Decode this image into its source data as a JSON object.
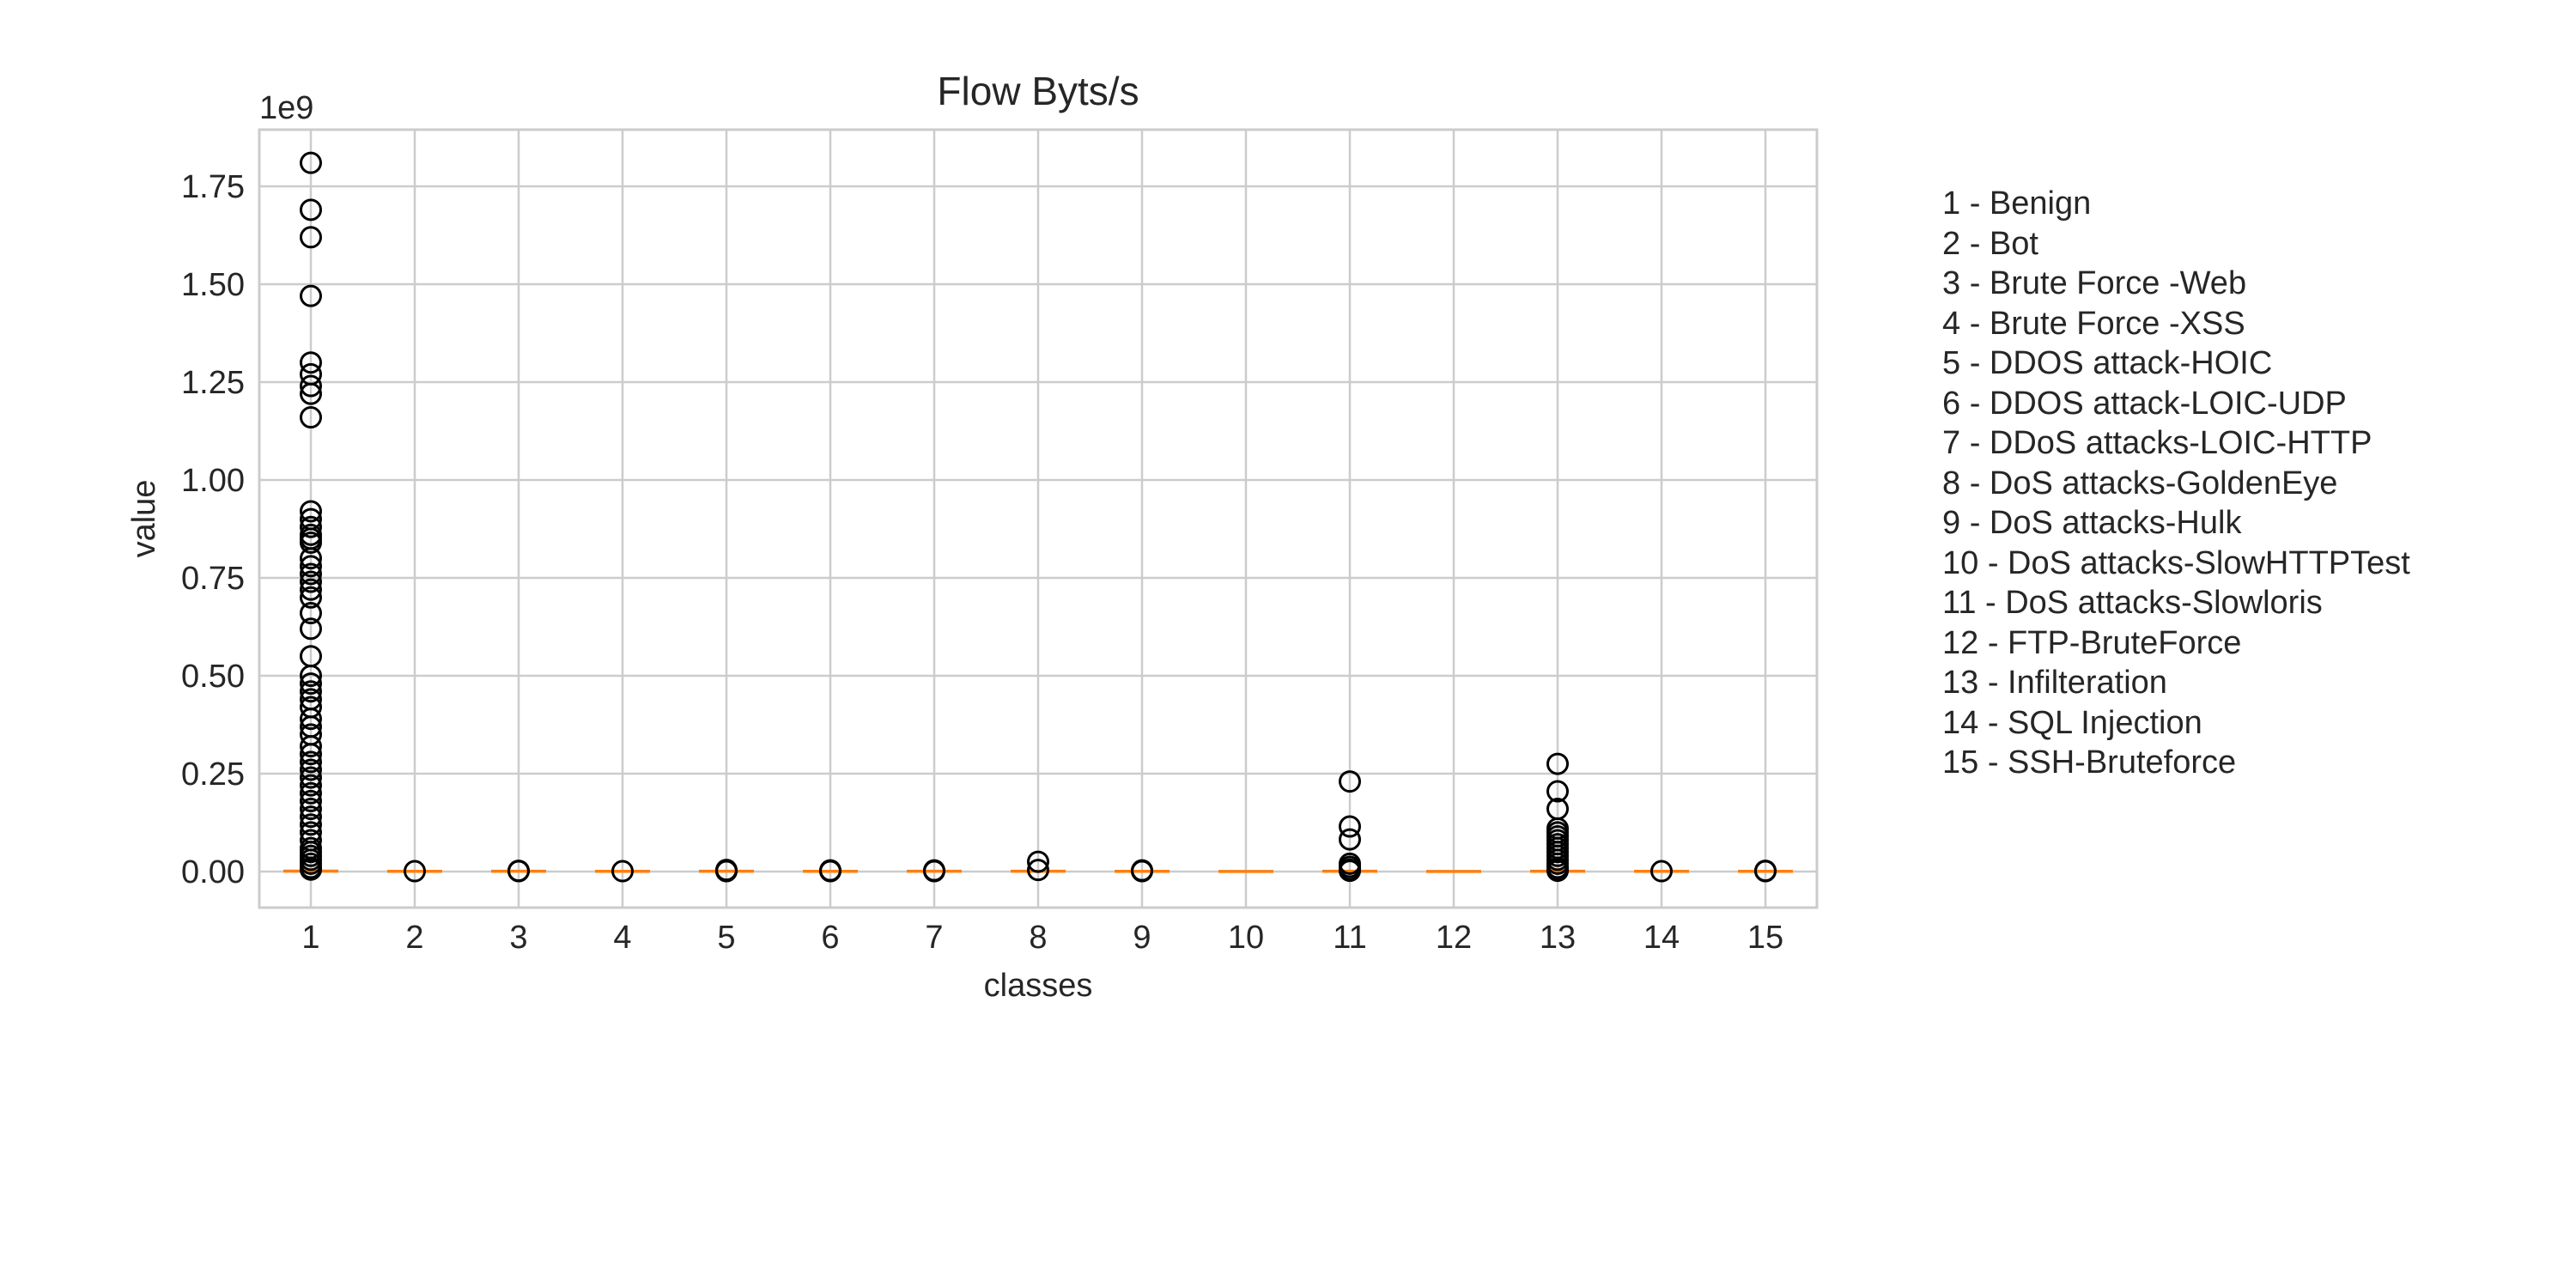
{
  "chart_data": {
    "type": "box",
    "title": "Flow Byts/s",
    "xlabel": "classes",
    "ylabel": "value",
    "y_offset_label": "1e9",
    "y_scale_factor": 1000000000,
    "ylim": [
      -0.08,
      1.9
    ],
    "yticks": [
      0.0,
      0.25,
      0.5,
      0.75,
      1.0,
      1.25,
      1.5,
      1.75
    ],
    "ytick_labels": [
      "0.00",
      "0.25",
      "0.50",
      "0.75",
      "1.00",
      "1.25",
      "1.50",
      "1.75"
    ],
    "grid": true,
    "categories": [
      "1",
      "2",
      "3",
      "4",
      "5",
      "6",
      "7",
      "8",
      "9",
      "10",
      "11",
      "12",
      "13",
      "14",
      "15"
    ],
    "median": [
      0.001,
      0.0005,
      0.0008,
      0.0005,
      0.0007,
      0.0006,
      0.0007,
      0.0008,
      0.0006,
      0.0003,
      0.0008,
      0.0002,
      0.0008,
      0.0005,
      0.0006
    ],
    "outliers": [
      [
        1.81,
        1.69,
        1.62,
        1.47,
        1.3,
        1.27,
        1.24,
        1.22,
        1.16,
        0.92,
        0.9,
        0.88,
        0.86,
        0.85,
        0.84,
        0.8,
        0.78,
        0.76,
        0.74,
        0.72,
        0.7,
        0.66,
        0.62,
        0.55,
        0.5,
        0.48,
        0.46,
        0.44,
        0.42,
        0.39,
        0.37,
        0.35,
        0.32,
        0.3,
        0.28,
        0.26,
        0.24,
        0.22,
        0.2,
        0.18,
        0.16,
        0.14,
        0.12,
        0.1,
        0.08,
        0.06,
        0.05,
        0.04,
        0.03,
        0.02,
        0.01,
        0.005
      ],
      [
        0.001
      ],
      [
        0.002,
        0.001
      ],
      [
        0.001
      ],
      [
        0.004,
        0.002,
        0.001
      ],
      [
        0.003,
        0.001
      ],
      [
        0.003,
        0.001
      ],
      [
        0.025,
        0.004
      ],
      [
        0.003,
        0.001
      ],
      [],
      [
        0.23,
        0.115,
        0.082,
        0.02,
        0.012,
        0.005,
        0.002
      ],
      [],
      [
        0.275,
        0.205,
        0.16,
        0.11,
        0.1,
        0.09,
        0.08,
        0.07,
        0.06,
        0.05,
        0.04,
        0.03,
        0.02,
        0.01,
        0.005,
        0.002
      ],
      [
        0.001
      ],
      [
        0.002,
        0.001
      ]
    ],
    "legend_placement": "right, outside plot",
    "legend": [
      "1 - Benign",
      "2 - Bot",
      "3 - Brute Force -Web",
      "4 - Brute Force -XSS",
      "5 - DDOS attack-HOIC",
      "6 - DDOS attack-LOIC-UDP",
      "7 - DDoS attacks-LOIC-HTTP",
      "8 - DoS attacks-GoldenEye",
      "9 - DoS attacks-Hulk",
      "10 - DoS attacks-SlowHTTPTest",
      "11 - DoS attacks-Slowloris",
      "12 - FTP-BruteForce",
      "13 - Infilteration",
      "14 - SQL Injection",
      "15 - SSH-Bruteforce"
    ],
    "colors": {
      "median": "#ff7f0e",
      "outlier": "#000000",
      "grid": "#cccccc",
      "frame": "#cccccc"
    }
  }
}
